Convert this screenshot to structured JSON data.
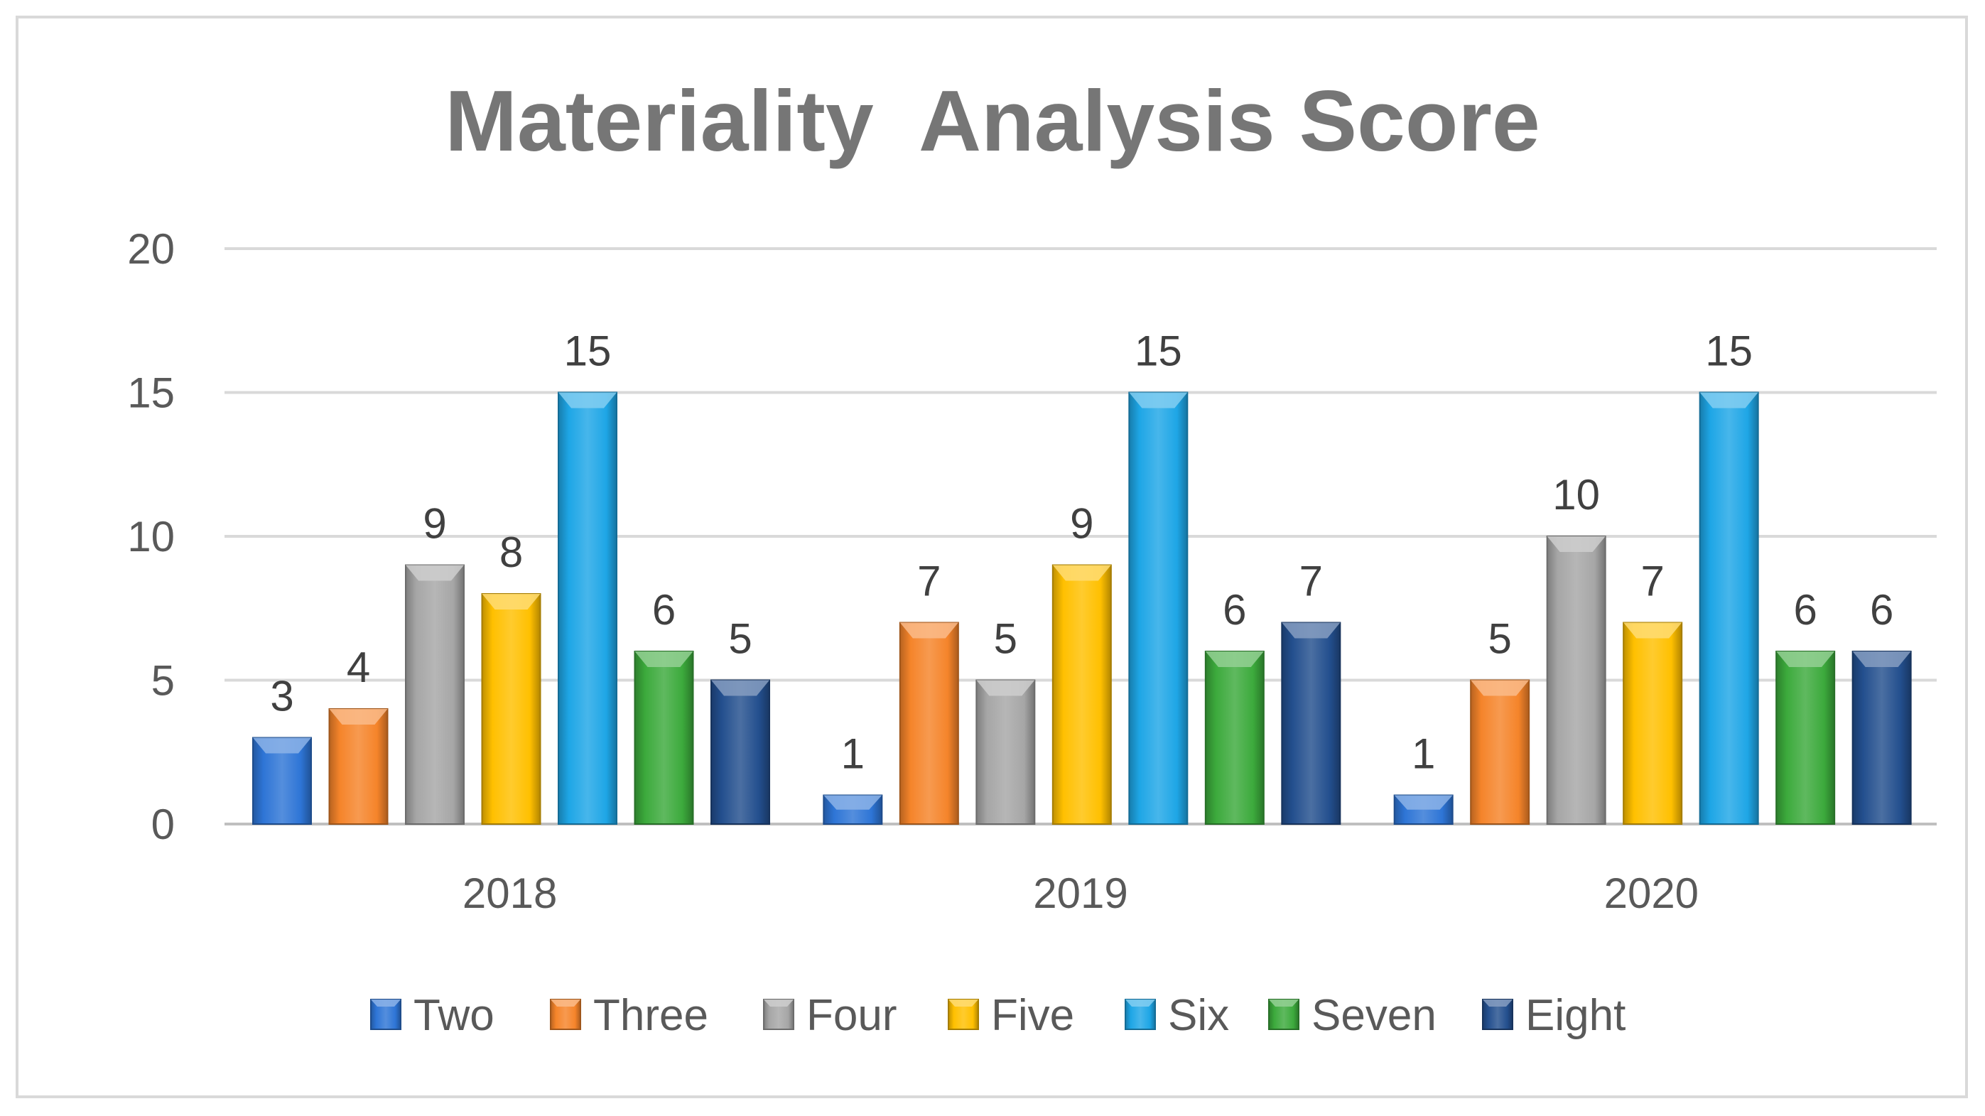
{
  "chart_data": {
    "type": "bar",
    "title": "Materiality  Analysis Score",
    "xlabel": "",
    "ylabel": "",
    "ylim": [
      0,
      20
    ],
    "yticks": [
      0,
      5,
      10,
      15,
      20
    ],
    "grid": true,
    "legend_position": "bottom",
    "data_labels": true,
    "categories": [
      "2018",
      "2019",
      "2020"
    ],
    "series": [
      {
        "name": "Two",
        "color": "#2e75d6",
        "values": [
          3,
          1,
          1
        ]
      },
      {
        "name": "Three",
        "color": "#f5842a",
        "values": [
          4,
          7,
          5
        ]
      },
      {
        "name": "Four",
        "color": "#a6a6a6",
        "values": [
          9,
          5,
          10
        ]
      },
      {
        "name": "Five",
        "color": "#ffc000",
        "values": [
          8,
          9,
          7
        ]
      },
      {
        "name": "Six",
        "color": "#1ea6e6",
        "values": [
          15,
          15,
          15
        ]
      },
      {
        "name": "Seven",
        "color": "#3caa3c",
        "values": [
          6,
          6,
          6
        ]
      },
      {
        "name": "Eight",
        "color": "#234f8e",
        "values": [
          5,
          7,
          6
        ]
      }
    ]
  }
}
